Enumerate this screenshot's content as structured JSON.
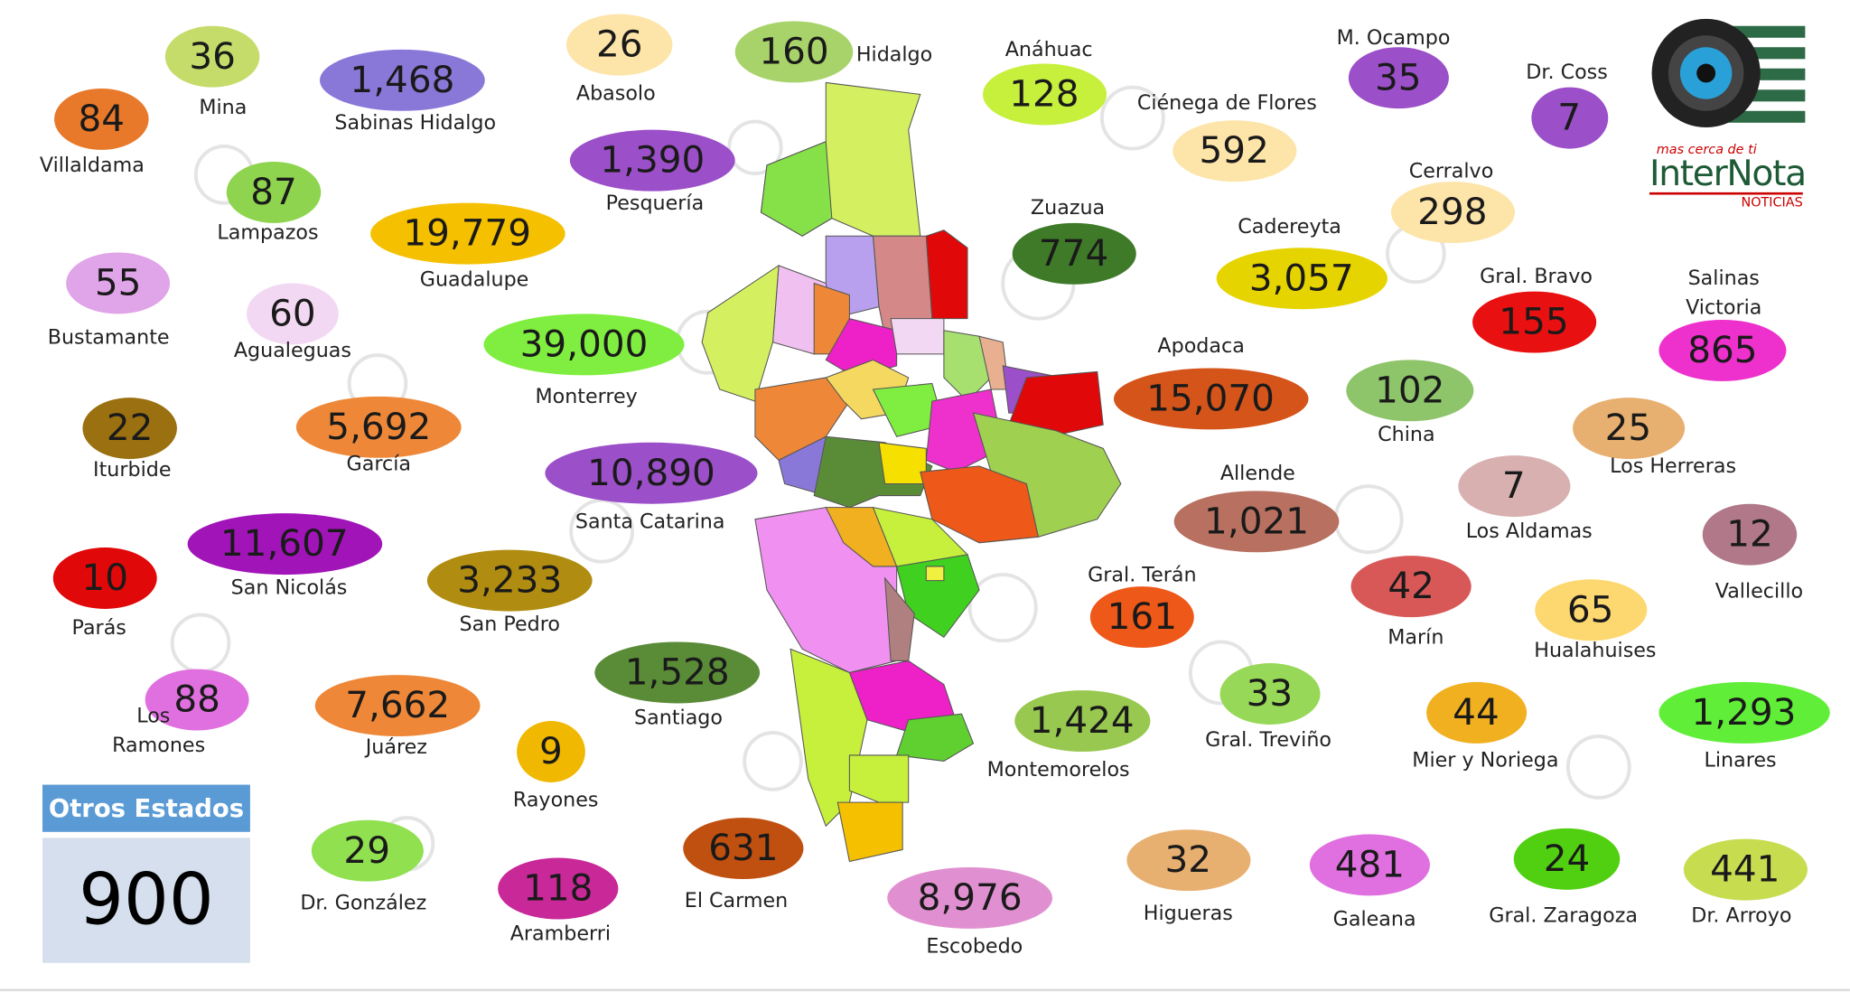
{
  "municipalities": [
    {
      "name": "Mina",
      "value": "36",
      "color": "#c5dc6a"
    },
    {
      "name": "Villaldama",
      "value": "84",
      "color": "#e8792a"
    },
    {
      "name": "Sabinas Hidalgo",
      "value": "1,468",
      "color": "#8a78d8"
    },
    {
      "name": "Abasolo",
      "value": "26",
      "color": "#fde4a8"
    },
    {
      "name": "Hidalgo",
      "value": "160",
      "color": "#a8d36a"
    },
    {
      "name": "Anáhuac",
      "value": "128",
      "color": "#c6f03c"
    },
    {
      "name": "Ciénega de Flores",
      "value": "592",
      "color": "#fde4a8"
    },
    {
      "name": "M. Ocampo",
      "value": "35",
      "color": "#9b4fc8"
    },
    {
      "name": "Dr. Coss",
      "value": "7",
      "color": "#9b4fc8"
    },
    {
      "name": "Lampazos",
      "value": "87",
      "color": "#8ed44e"
    },
    {
      "name": "Pesquería",
      "value": "1,390",
      "color": "#9b4fc8"
    },
    {
      "name": "Guadalupe",
      "value": "19,779",
      "color": "#f5c000"
    },
    {
      "name": "Zuazua",
      "value": "774",
      "color": "#3e7a28"
    },
    {
      "name": "Cerralvo",
      "value": "298",
      "color": "#fde4a8"
    },
    {
      "name": "Cadereyta",
      "value": "3,057",
      "color": "#e6d400"
    },
    {
      "name": "Bustamante",
      "value": "55",
      "color": "#e0a4e8"
    },
    {
      "name": "Agualeguas",
      "value": "60",
      "color": "#f3d8f3"
    },
    {
      "name": "Monterrey",
      "value": "39,000",
      "color": "#80ee40"
    },
    {
      "name": "Gral. Bravo",
      "value": "155",
      "color": "#e81010"
    },
    {
      "name": "Salinas Victoria",
      "value": "865",
      "color": "#ee30cc"
    },
    {
      "name": "Apodaca",
      "value": "15,070",
      "color": "#d4541a"
    },
    {
      "name": "China",
      "value": "102",
      "color": "#8ec46a"
    },
    {
      "name": "Iturbide",
      "value": "22",
      "color": "#9a7010"
    },
    {
      "name": "García",
      "value": "5,692",
      "color": "#ee8838"
    },
    {
      "name": "Los Herreras",
      "value": "25",
      "color": "#e8b070"
    },
    {
      "name": "Santa Catarina",
      "value": "10,890",
      "color": "#9b4fc8"
    },
    {
      "name": "Los Aldamas",
      "value": "7",
      "color": "#d8b0b0"
    },
    {
      "name": "Allende",
      "value": "1,021",
      "color": "#b87060"
    },
    {
      "name": "Vallecillo",
      "value": "12",
      "color": "#b07888"
    },
    {
      "name": "San Nicolás",
      "value": "11,607",
      "color": "#a014b8"
    },
    {
      "name": "Parás",
      "value": "10",
      "color": "#e00808"
    },
    {
      "name": "San Pedro",
      "value": "3,233",
      "color": "#b08c10"
    },
    {
      "name": "Marín",
      "value": "42",
      "color": "#d85858"
    },
    {
      "name": "Gral. Terán",
      "value": "161",
      "color": "#ee5818"
    },
    {
      "name": "Hualahuises",
      "value": "65",
      "color": "#fdd870"
    },
    {
      "name": "Santiago",
      "value": "1,528",
      "color": "#5a8c38"
    },
    {
      "name": "Los Ramones",
      "value": "88",
      "color": "#e070e0"
    },
    {
      "name": "Juárez",
      "value": "7,662",
      "color": "#ee8838"
    },
    {
      "name": "Rayones",
      "value": "9",
      "color": "#f0b800"
    },
    {
      "name": "Montemorelos",
      "value": "1,424",
      "color": "#98c850"
    },
    {
      "name": "Gral. Treviño",
      "value": "33",
      "color": "#98d858"
    },
    {
      "name": "Mier y Noriega",
      "value": "44",
      "color": "#f0b020"
    },
    {
      "name": "Linares",
      "value": "1,293",
      "color": "#60ee38"
    },
    {
      "name": "Dr. González",
      "value": "29",
      "color": "#90e050"
    },
    {
      "name": "Aramberri",
      "value": "118",
      "color": "#c82898"
    },
    {
      "name": "El Carmen",
      "value": "631",
      "color": "#c05010"
    },
    {
      "name": "Escobedo",
      "value": "8,976",
      "color": "#e090d0"
    },
    {
      "name": "Higueras",
      "value": "32",
      "color": "#e8b070"
    },
    {
      "name": "Galeana",
      "value": "481",
      "color": "#e070e0"
    },
    {
      "name": "Gral. Zaragoza",
      "value": "24",
      "color": "#50d010"
    },
    {
      "name": "Dr. Arroyo",
      "value": "441",
      "color": "#c8dc50"
    }
  ],
  "others": {
    "title": "Otros Estados",
    "value": "900"
  },
  "logo": {
    "tagline": "mas cerca de ti",
    "brand": "InterNota",
    "sub": "NOTICIAS"
  }
}
